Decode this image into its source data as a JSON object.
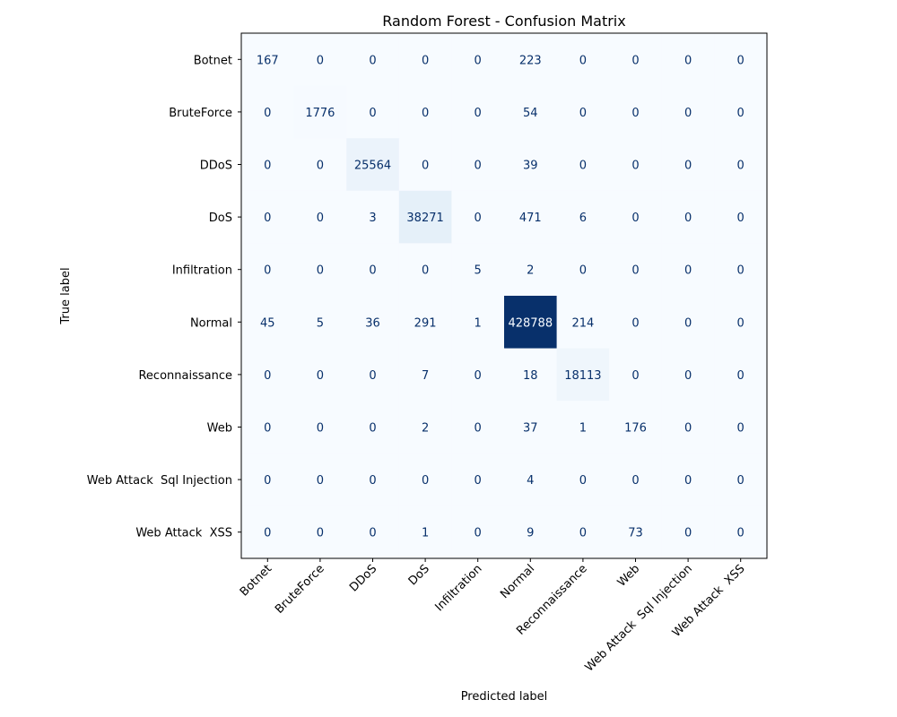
{
  "chart_data": {
    "type": "heatmap",
    "title": "Random Forest - Confusion Matrix",
    "xlabel": "Predicted label",
    "ylabel": "True label",
    "colormap": "Blues",
    "colorbar": false,
    "grid": false,
    "row_labels": [
      "Botnet",
      "BruteForce",
      "DDoS",
      "DoS",
      "Infiltration",
      "Normal",
      "Reconnaissance",
      "Web",
      "Web Attack  Sql Injection",
      "Web Attack  XSS"
    ],
    "col_labels": [
      "Botnet",
      "BruteForce",
      "DDoS",
      "DoS",
      "Infiltration",
      "Normal",
      "Reconnaissance",
      "Web",
      "Web Attack  Sql Injection",
      "Web Attack  XSS"
    ],
    "values": [
      [
        167,
        0,
        0,
        0,
        0,
        223,
        0,
        0,
        0,
        0
      ],
      [
        0,
        1776,
        0,
        0,
        0,
        54,
        0,
        0,
        0,
        0
      ],
      [
        0,
        0,
        25564,
        0,
        0,
        39,
        0,
        0,
        0,
        0
      ],
      [
        0,
        0,
        3,
        38271,
        0,
        471,
        6,
        0,
        0,
        0
      ],
      [
        0,
        0,
        0,
        0,
        5,
        2,
        0,
        0,
        0,
        0
      ],
      [
        45,
        5,
        36,
        291,
        1,
        428788,
        214,
        0,
        0,
        0
      ],
      [
        0,
        0,
        0,
        7,
        0,
        18,
        18113,
        0,
        0,
        0
      ],
      [
        0,
        0,
        0,
        2,
        0,
        37,
        1,
        176,
        0,
        0
      ],
      [
        0,
        0,
        0,
        0,
        0,
        4,
        0,
        0,
        0,
        0
      ],
      [
        0,
        0,
        0,
        1,
        0,
        9,
        0,
        73,
        0,
        0
      ]
    ],
    "colors": {
      "low": "#f7fbff",
      "high": "#08306b",
      "dark_text": "#08306b",
      "light_text": "#f7fbff"
    }
  }
}
